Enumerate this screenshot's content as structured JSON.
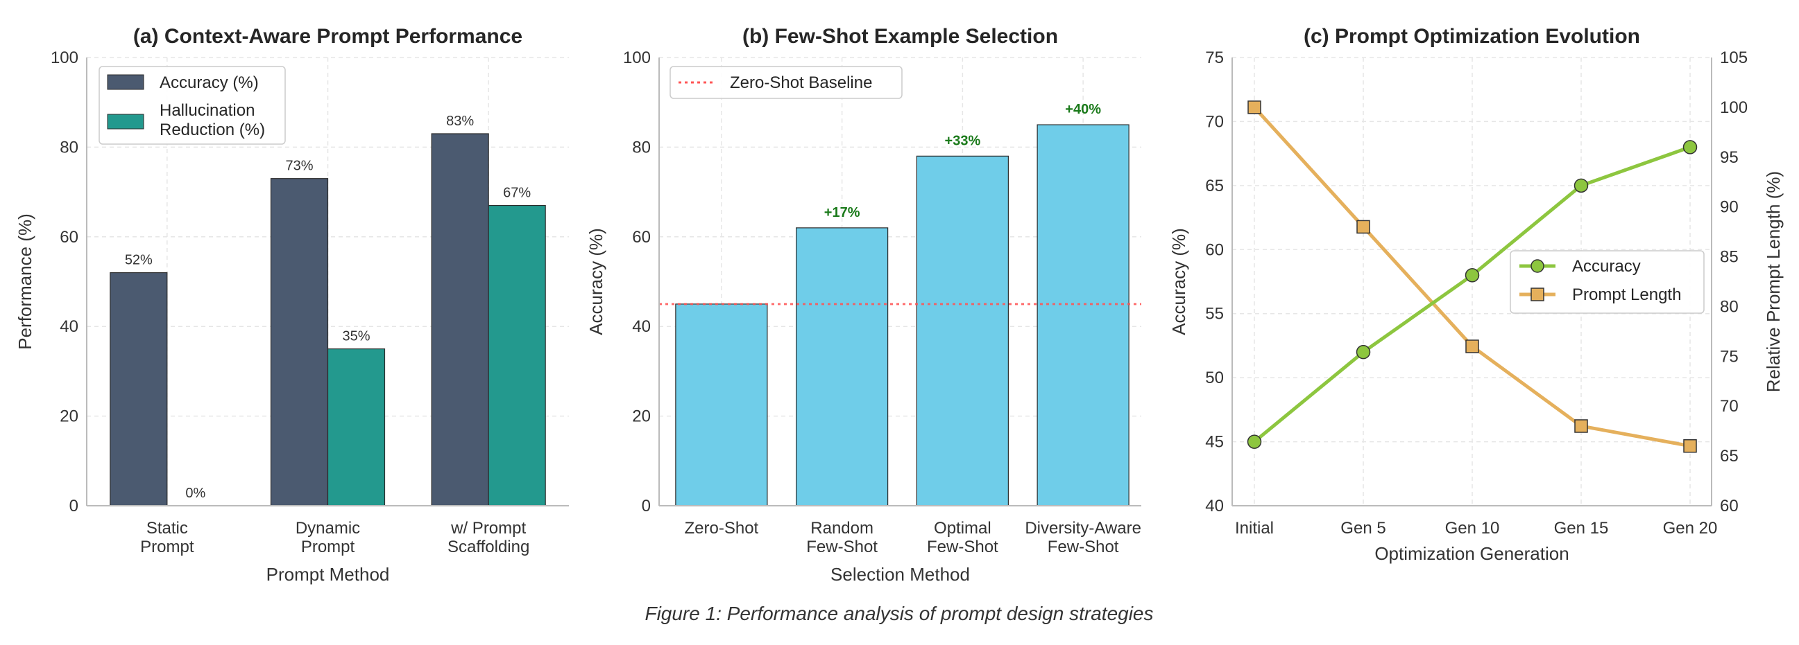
{
  "figure": {
    "caption": "Figure 1: Performance analysis of prompt design strategies"
  },
  "colors": {
    "accuracy_bar": "#4b5a70",
    "hallucination_bar": "#23998e",
    "fewshot_bar": "#6fcde9",
    "baseline": "#ff5555",
    "line_accuracy": "#8dc63f",
    "line_length": "#e5b05c",
    "gain_text": "#1a7a1a",
    "grid": "#e6e6e6"
  },
  "chart_data": [
    {
      "type": "bar",
      "title": "(a) Context-Aware Prompt Performance",
      "xlabel": "Prompt Method",
      "ylabel": "Performance (%)",
      "categories": [
        [
          "Static",
          "Prompt"
        ],
        [
          "Dynamic",
          "Prompt"
        ],
        [
          "w/ Prompt",
          "Scaffolding"
        ]
      ],
      "series": [
        {
          "name": "Accuracy (%)",
          "values": [
            52,
            73,
            83
          ],
          "labels": [
            "52%",
            "73%",
            "83%"
          ]
        },
        {
          "name": "Hallucination Reduction (%)",
          "legend_lines": [
            "Hallucination",
            "Reduction (%)"
          ],
          "values": [
            0,
            35,
            67
          ],
          "labels": [
            "0%",
            "35%",
            "67%"
          ]
        }
      ],
      "ylim": [
        0,
        100
      ],
      "yticks": [
        0,
        20,
        40,
        60,
        80,
        100
      ],
      "grid": true,
      "legend": "top-left"
    },
    {
      "type": "bar",
      "title": "(b) Few-Shot Example Selection",
      "xlabel": "Selection Method",
      "ylabel": "Accuracy (%)",
      "categories": [
        [
          "Zero-Shot"
        ],
        [
          "Random",
          "Few-Shot"
        ],
        [
          "Optimal",
          "Few-Shot"
        ],
        [
          "Diversity-Aware",
          "Few-Shot"
        ]
      ],
      "values": [
        45,
        62,
        78,
        85
      ],
      "gain_labels": [
        "",
        "+17%",
        "+33%",
        "+40%"
      ],
      "baseline": {
        "name": "Zero-Shot Baseline",
        "value": 45
      },
      "ylim": [
        0,
        100
      ],
      "yticks": [
        0,
        20,
        40,
        60,
        80,
        100
      ],
      "grid": true,
      "legend": "top-left"
    },
    {
      "type": "line",
      "title": "(c) Prompt Optimization Evolution",
      "xlabel": "Optimization Generation",
      "ylabel": "Accuracy (%)",
      "ylabel_right": "Relative Prompt Length (%)",
      "x": [
        "Initial",
        "Gen 5",
        "Gen 10",
        "Gen 15",
        "Gen 20"
      ],
      "series": [
        {
          "name": "Accuracy",
          "axis": "left",
          "marker": "circle",
          "values": [
            45,
            52,
            58,
            65,
            68
          ]
        },
        {
          "name": "Prompt Length",
          "axis": "right",
          "marker": "square",
          "values": [
            100,
            88,
            76,
            68,
            66
          ]
        }
      ],
      "ylim": [
        40,
        75
      ],
      "yticks": [
        40,
        45,
        50,
        55,
        60,
        65,
        70,
        75
      ],
      "ylim_right": [
        60,
        105
      ],
      "yticks_right": [
        60,
        65,
        70,
        75,
        80,
        85,
        90,
        95,
        100,
        105
      ],
      "grid": true,
      "legend": "center-right"
    }
  ]
}
